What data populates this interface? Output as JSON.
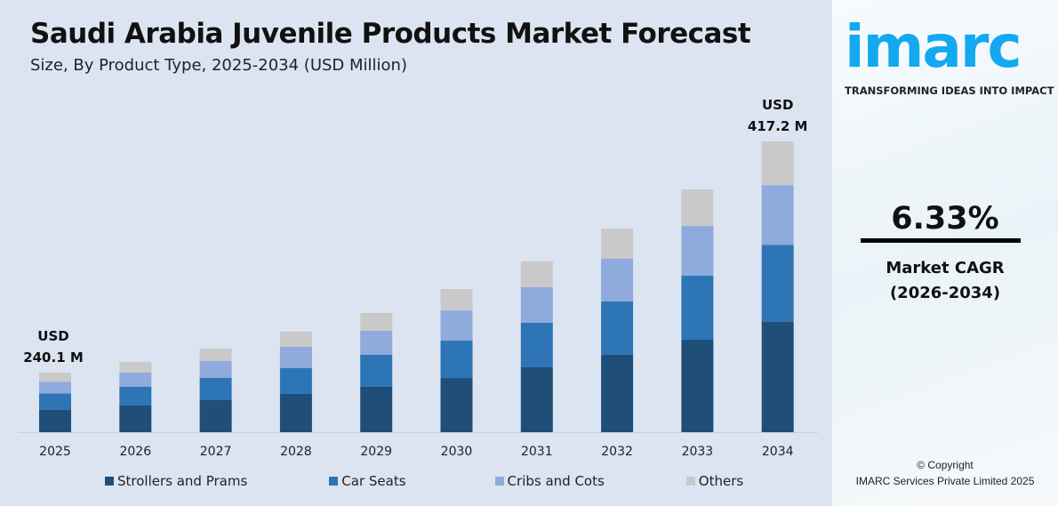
{
  "chart_data": {
    "type": "bar",
    "stacked": true,
    "title": "Saudi Arabia Juvenile Products Market Forecast",
    "subtitle": "Size, By Product Type, 2025-2034 (USD Million)",
    "categories": [
      "2025",
      "2026",
      "2027",
      "2028",
      "2029",
      "2030",
      "2031",
      "2032",
      "2033",
      "2034"
    ],
    "series": [
      {
        "name": "Strollers and Prams",
        "color": "#1f4e79",
        "values": [
          90.9,
          94.3,
          99.0,
          103.3,
          108.8,
          115.2,
          123.7,
          133.2,
          144.9,
          158.7
        ]
      },
      {
        "name": "Car Seats",
        "color": "#2e75b6",
        "values": [
          65.5,
          66.0,
          68.8,
          69.7,
          76.8,
          79.3,
          84.7,
          91.8,
          100.3,
          110.1
        ]
      },
      {
        "name": "Cribs and Cots",
        "color": "#8faadc",
        "values": [
          47.3,
          50.3,
          52.3,
          57.7,
          57.6,
          64.2,
          67.8,
          73.5,
          78.0,
          85.7
        ]
      },
      {
        "name": "Others",
        "color": "#c9c9c9",
        "values": [
          36.4,
          37.7,
          38.4,
          40.8,
          42.6,
          45.4,
          49.1,
          52.0,
          57.2,
          62.7
        ]
      }
    ],
    "annotations": [
      {
        "category": "2025",
        "line1": "USD",
        "line2": "240.1 M"
      },
      {
        "category": "2034",
        "line1": "USD",
        "line2": "417.2 M"
      }
    ],
    "legend": "bottom",
    "grid": false
  },
  "sidebar": {
    "logo": "imarc",
    "tagline": "TRANSFORMING IDEAS INTO IMPACT",
    "cagr_value": "6.33%",
    "cagr_label": "Market CAGR",
    "cagr_period": "(2026-2034)",
    "copyright": "© Copyright",
    "company": "IMARC Services Private Limited 2025"
  }
}
